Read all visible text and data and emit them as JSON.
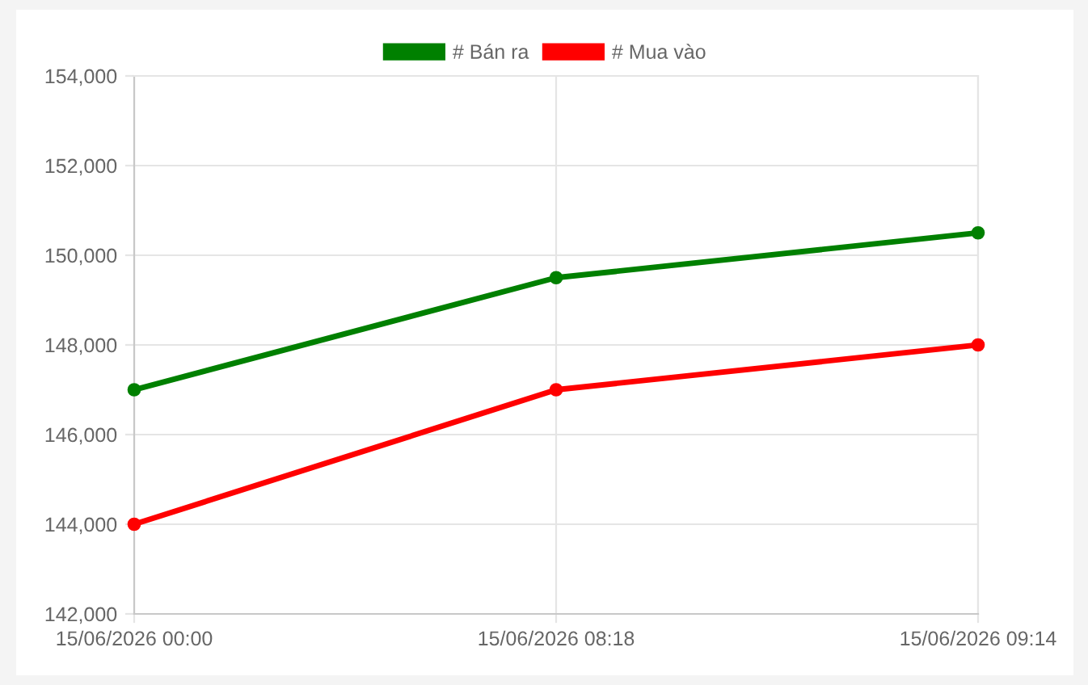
{
  "chart_data": {
    "type": "line",
    "categories": [
      "15/06/2026 00:00",
      "15/06/2026 08:18",
      "15/06/2026 09:14"
    ],
    "series": [
      {
        "name": "# Bán ra",
        "color": "#008000",
        "values": [
          147000,
          149500,
          150500
        ]
      },
      {
        "name": "# Mua vào",
        "color": "#ff0000",
        "values": [
          144000,
          147000,
          148000
        ]
      }
    ],
    "ylim": [
      142000,
      154000
    ],
    "yticks": [
      {
        "value": 142000,
        "label": "142,000"
      },
      {
        "value": 144000,
        "label": "144,000"
      },
      {
        "value": 146000,
        "label": "146,000"
      },
      {
        "value": 148000,
        "label": "148,000"
      },
      {
        "value": 150000,
        "label": "150,000"
      },
      {
        "value": 152000,
        "label": "152,000"
      },
      {
        "value": 154000,
        "label": "154,000"
      }
    ],
    "grid": true,
    "legend": "top",
    "marker": "circle",
    "line_style": "solid"
  }
}
